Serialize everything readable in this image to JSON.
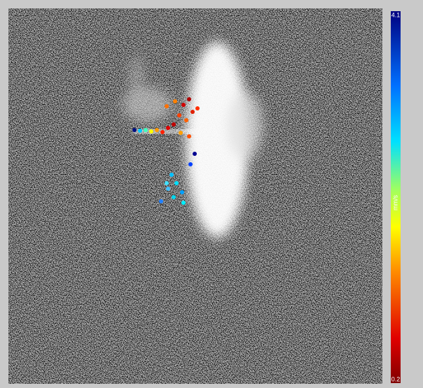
{
  "colorbar": {
    "max_label": 4.1,
    "min_label": 0.2,
    "unit_label": "mm/s"
  }
}
